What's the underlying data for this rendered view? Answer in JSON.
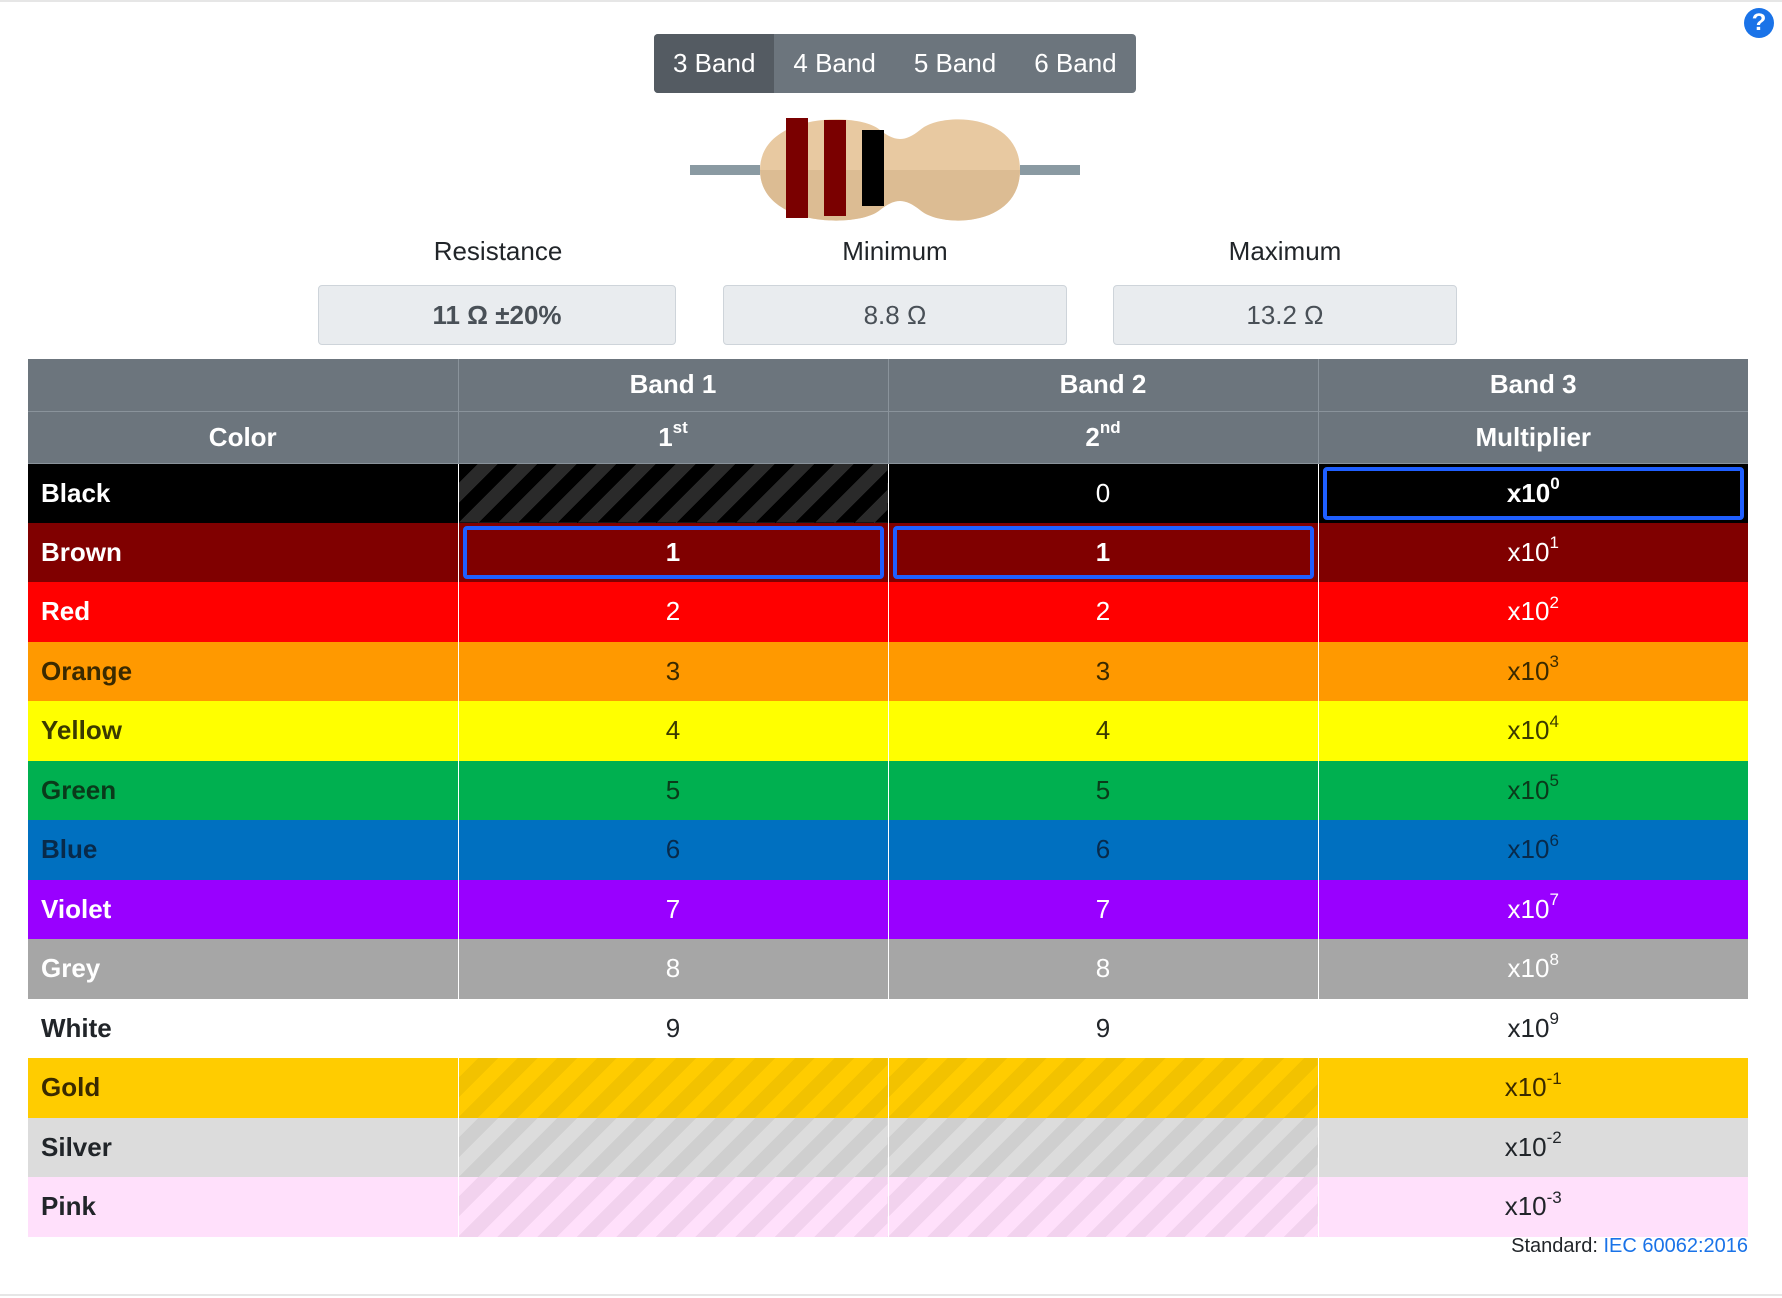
{
  "help": {
    "label": "?"
  },
  "tabs": [
    {
      "label": "3 Band",
      "active": true
    },
    {
      "label": "4 Band",
      "active": false
    },
    {
      "label": "5 Band",
      "active": false
    },
    {
      "label": "6 Band",
      "active": false
    }
  ],
  "resistor": {
    "band_colors": [
      "#7a0000",
      "#7a0000",
      "#000000"
    ],
    "body_color": "#e8c9a1",
    "lead_color": "#8a9aa2"
  },
  "stats": {
    "resistance_label": "Resistance",
    "resistance_value": "11 Ω ±20%",
    "minimum_label": "Minimum",
    "minimum_value": "8.8 Ω",
    "maximum_label": "Maximum",
    "maximum_value": "13.2 Ω"
  },
  "table": {
    "header_row1": [
      "",
      "Band 1",
      "Band 2",
      "Band 3"
    ],
    "header_row2": {
      "color": "Color",
      "b1_main": "1",
      "b1_sup": "st",
      "b2_main": "2",
      "b2_sup": "nd",
      "b3": "Multiplier"
    },
    "rows": [
      {
        "name": "Black",
        "bg": "#000000",
        "fg": "#ffffff",
        "d1": "",
        "d2": "0",
        "exp": "0",
        "hatch": "dark"
      },
      {
        "name": "Brown",
        "bg": "#800000",
        "fg": "#ffffff",
        "d1": "1",
        "d2": "1",
        "exp": "1",
        "hatch": ""
      },
      {
        "name": "Red",
        "bg": "#ff0000",
        "fg": "#ffffff",
        "d1": "2",
        "d2": "2",
        "exp": "2",
        "hatch": ""
      },
      {
        "name": "Orange",
        "bg": "#ff9900",
        "fg": "#3a2a00",
        "d1": "3",
        "d2": "3",
        "exp": "3",
        "hatch": ""
      },
      {
        "name": "Yellow",
        "bg": "#ffff00",
        "fg": "#3a3a00",
        "d1": "4",
        "d2": "4",
        "exp": "4",
        "hatch": ""
      },
      {
        "name": "Green",
        "bg": "#00b050",
        "fg": "#0a3a1a",
        "d1": "5",
        "d2": "5",
        "exp": "5",
        "hatch": ""
      },
      {
        "name": "Blue",
        "bg": "#0070c0",
        "fg": "#082a4a",
        "d1": "6",
        "d2": "6",
        "exp": "6",
        "hatch": ""
      },
      {
        "name": "Violet",
        "bg": "#9900ff",
        "fg": "#ffffff",
        "d1": "7",
        "d2": "7",
        "exp": "7",
        "hatch": ""
      },
      {
        "name": "Grey",
        "bg": "#a6a6a6",
        "fg": "#ffffff",
        "d1": "8",
        "d2": "8",
        "exp": "8",
        "hatch": ""
      },
      {
        "name": "White",
        "bg": "#ffffff",
        "fg": "#212529",
        "d1": "9",
        "d2": "9",
        "exp": "9",
        "hatch": ""
      },
      {
        "name": "Gold",
        "bg": "#ffcc00",
        "fg": "#3a2a00",
        "d1": "",
        "d2": "",
        "exp": "-1",
        "hatch": "gold"
      },
      {
        "name": "Silver",
        "bg": "#dcdcdc",
        "fg": "#212529",
        "d1": "",
        "d2": "",
        "exp": "-2",
        "hatch": "silver"
      },
      {
        "name": "Pink",
        "bg": "#ffe0fb",
        "fg": "#212529",
        "d1": "",
        "d2": "",
        "exp": "-3",
        "hatch": "pink"
      }
    ],
    "multiplier_prefix": "x10",
    "selected": {
      "band1": "Brown",
      "band2": "Brown",
      "band3": "Black"
    }
  },
  "standard": {
    "label": "Standard:",
    "link": "IEC 60062:2016"
  }
}
